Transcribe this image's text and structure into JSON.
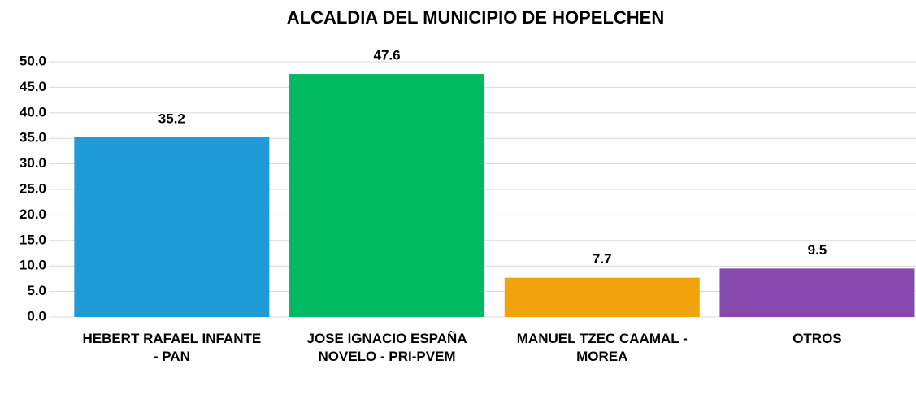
{
  "chart_data": {
    "type": "bar",
    "title": "ALCALDIA DEL MUNICIPIO DE HOPELCHEN",
    "categories": [
      "HEBERT RAFAEL INFANTE - PAN",
      "JOSE IGNACIO ESPAÑA NOVELO - PRI-PVEM",
      "MANUEL TZEC CAAMAL - MOREA",
      "OTROS"
    ],
    "values": [
      35.2,
      47.6,
      7.7,
      9.5
    ],
    "colors": [
      "#1f9bd7",
      "#00b960",
      "#f0a30a",
      "#8549ad"
    ],
    "ylim": [
      0,
      50
    ],
    "yticks": [
      {
        "value": 0,
        "label": "0.0"
      },
      {
        "value": 5,
        "label": "5.0"
      },
      {
        "value": 10,
        "label": "10.0"
      },
      {
        "value": 15,
        "label": "15.0"
      },
      {
        "value": 20,
        "label": "20.0"
      },
      {
        "value": 25,
        "label": "25.0"
      },
      {
        "value": 30,
        "label": "30.0"
      },
      {
        "value": 35,
        "label": "35.0"
      },
      {
        "value": 40,
        "label": "40.0"
      },
      {
        "value": 45,
        "label": "45.0"
      },
      {
        "value": 50,
        "label": "50.0"
      }
    ],
    "grid": true
  }
}
